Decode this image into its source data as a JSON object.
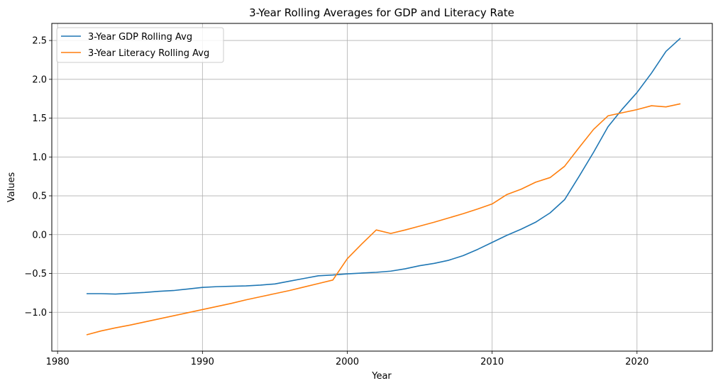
{
  "chart_data": {
    "type": "line",
    "title": "3-Year Rolling Averages for GDP and Literacy Rate",
    "xlabel": "Year",
    "ylabel": "Values",
    "xlim": [
      1979.6,
      2025.2
    ],
    "ylim": [
      -1.5,
      2.72
    ],
    "xticks": [
      1980,
      1990,
      2000,
      2010,
      2020
    ],
    "xtick_labels": [
      "1980",
      "1990",
      "2000",
      "2010",
      "2020"
    ],
    "yticks": [
      -1.0,
      -0.5,
      0.0,
      0.5,
      1.0,
      1.5,
      2.0,
      2.5
    ],
    "ytick_labels": [
      "−1.0",
      "−0.5",
      "0.0",
      "0.5",
      "1.0",
      "1.5",
      "2.0",
      "2.5"
    ],
    "grid": true,
    "legend_position": "top-left",
    "x": [
      1982,
      1983,
      1984,
      1985,
      1986,
      1987,
      1988,
      1989,
      1990,
      1991,
      1992,
      1993,
      1994,
      1995,
      1996,
      1997,
      1998,
      1999,
      2000,
      2001,
      2002,
      2003,
      2004,
      2005,
      2006,
      2007,
      2008,
      2009,
      2010,
      2011,
      2012,
      2013,
      2014,
      2015,
      2016,
      2017,
      2018,
      2019,
      2020,
      2021,
      2022,
      2023
    ],
    "series": [
      {
        "name": "3-Year GDP Rolling Avg",
        "color": "#1f77b4",
        "values": [
          -0.76,
          -0.76,
          -0.765,
          -0.755,
          -0.745,
          -0.73,
          -0.72,
          -0.7,
          -0.68,
          -0.67,
          -0.665,
          -0.66,
          -0.65,
          -0.635,
          -0.6,
          -0.565,
          -0.53,
          -0.52,
          -0.505,
          -0.495,
          -0.485,
          -0.47,
          -0.44,
          -0.4,
          -0.37,
          -0.33,
          -0.27,
          -0.19,
          -0.1,
          -0.01,
          0.07,
          0.16,
          0.28,
          0.45,
          0.75,
          1.06,
          1.39,
          1.62,
          1.83,
          2.08,
          2.36,
          2.53
        ]
      },
      {
        "name": "3-Year Literacy Rolling Avg",
        "color": "#ff7f0e",
        "values": [
          -1.29,
          -1.24,
          -1.2,
          -1.165,
          -1.125,
          -1.085,
          -1.045,
          -1.005,
          -0.965,
          -0.925,
          -0.885,
          -0.84,
          -0.8,
          -0.76,
          -0.72,
          -0.675,
          -0.63,
          -0.585,
          -0.31,
          -0.12,
          0.06,
          0.015,
          0.06,
          0.11,
          0.16,
          0.215,
          0.27,
          0.33,
          0.395,
          0.515,
          0.585,
          0.675,
          0.735,
          0.88,
          1.12,
          1.355,
          1.53,
          1.57,
          1.61,
          1.66,
          1.645,
          1.685
        ]
      }
    ]
  }
}
